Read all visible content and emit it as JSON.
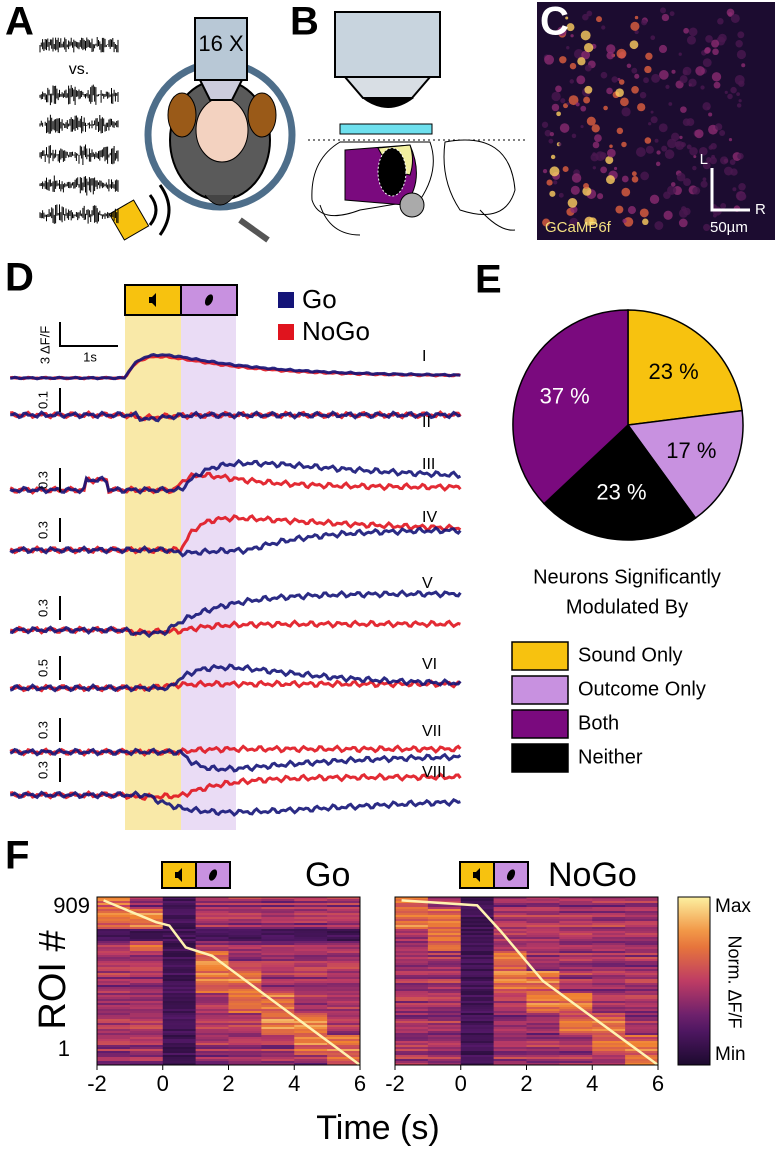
{
  "panel_labels": [
    "A",
    "B",
    "C",
    "D",
    "E",
    "F"
  ],
  "panel_a": {
    "vs_label": "vs.",
    "objective_label": "16 X"
  },
  "panel_c": {
    "axis_l": "L",
    "axis_r": "R",
    "scale_label": "50µm",
    "indicator_label": "GCaMP6f"
  },
  "panel_d": {
    "legend": [
      {
        "name": "Go",
        "color": "#141478"
      },
      {
        "name": "NoGo",
        "color": "#e0141e"
      }
    ],
    "scale_y_label": "3 ΔF/F",
    "scale_x_label": "1s",
    "traces": [
      {
        "name": "I"
      },
      {
        "name": "II",
        "scale": 0.1
      },
      {
        "name": "III",
        "scale": 0.3
      },
      {
        "name": "IV",
        "scale": 0.3
      },
      {
        "name": "V",
        "scale": 0.3
      },
      {
        "name": "VI",
        "scale": 0.5
      },
      {
        "name": "VII",
        "scale": 0.3
      },
      {
        "name": "VIII",
        "scale": 0.3
      }
    ]
  },
  "chart_data": {
    "type": "pie",
    "categories": [
      "Sound Only",
      "Outcome Only",
      "Neither",
      "Both"
    ],
    "values": [
      23,
      17,
      23,
      37
    ],
    "value_labels": [
      "23 %",
      "17 %",
      "23 %",
      "37 %"
    ],
    "colors": [
      "#f7c20f",
      "#c891e0",
      "#000000",
      "#7a0a7e"
    ],
    "legend_title": [
      "Neurons Significantly",
      "Modulated By"
    ]
  },
  "panel_f": {
    "titles": [
      "Go",
      "NoGo"
    ],
    "ylabel": "ROI #",
    "yticks": [
      909,
      1
    ],
    "xlabel": "Time (s)",
    "xlim": [
      -2,
      6
    ],
    "xticks": [
      -2,
      0,
      2,
      4,
      6
    ],
    "colorbar": {
      "max": "Max",
      "label": "Norm. ΔF/F",
      "min": "Min"
    }
  }
}
